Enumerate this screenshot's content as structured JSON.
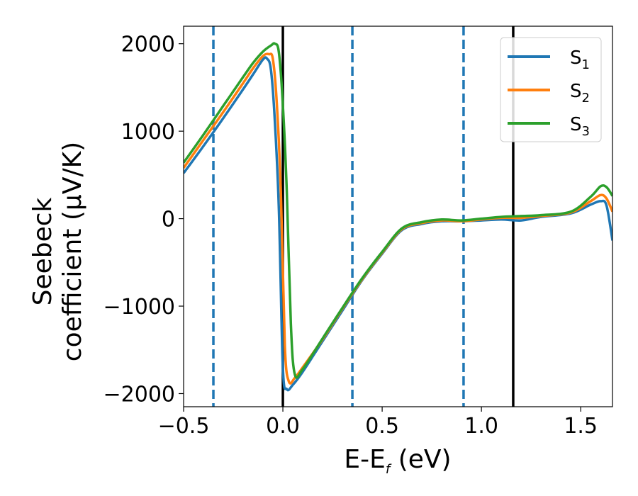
{
  "chart_data": {
    "type": "line",
    "xlabel": "E-E",
    "xlabel_sub": "f",
    "xlabel_unit": " (eV)",
    "ylabel_line1": "Seebeck",
    "ylabel_line2": "coefficient  (μV/K)",
    "xlim": [
      -0.5,
      1.66
    ],
    "ylim": [
      -2150,
      2200
    ],
    "xticks": [
      -0.5,
      0.0,
      0.5,
      1.0,
      1.5
    ],
    "xtick_labels": [
      "−0.5",
      "0.0",
      "0.5",
      "1.0",
      "1.5"
    ],
    "yticks": [
      -2000,
      -1000,
      0,
      1000,
      2000
    ],
    "ytick_labels": [
      "−2000",
      "−1000",
      "0",
      "1000",
      "2000"
    ],
    "legend_position": "top-right",
    "vlines": [
      {
        "x": -0.35,
        "style": "dashed",
        "color": "#1f77b4"
      },
      {
        "x": 0.0,
        "style": "solid",
        "color": "#000000"
      },
      {
        "x": 0.35,
        "style": "dashed",
        "color": "#1f77b4"
      },
      {
        "x": 0.91,
        "style": "dashed",
        "color": "#1f77b4"
      },
      {
        "x": 1.16,
        "style": "solid",
        "color": "#000000"
      }
    ],
    "series": [
      {
        "name": "S",
        "sub": "1",
        "color": "#1f77b4",
        "points": [
          [
            -0.5,
            520
          ],
          [
            -0.4,
            830
          ],
          [
            -0.3,
            1150
          ],
          [
            -0.2,
            1480
          ],
          [
            -0.15,
            1650
          ],
          [
            -0.1,
            1820
          ],
          [
            -0.08,
            1830
          ],
          [
            -0.06,
            1700
          ],
          [
            -0.04,
            1100
          ],
          [
            -0.02,
            100
          ],
          [
            0.0,
            -1700
          ],
          [
            0.02,
            -1950
          ],
          [
            0.05,
            -1900
          ],
          [
            0.1,
            -1750
          ],
          [
            0.2,
            -1400
          ],
          [
            0.3,
            -1050
          ],
          [
            0.4,
            -700
          ],
          [
            0.5,
            -400
          ],
          [
            0.6,
            -130
          ],
          [
            0.7,
            -60
          ],
          [
            0.8,
            -30
          ],
          [
            0.9,
            -30
          ],
          [
            1.0,
            -20
          ],
          [
            1.1,
            -10
          ],
          [
            1.2,
            -20
          ],
          [
            1.3,
            20
          ],
          [
            1.45,
            60
          ],
          [
            1.55,
            160
          ],
          [
            1.6,
            200
          ],
          [
            1.63,
            150
          ],
          [
            1.66,
            -250
          ]
        ]
      },
      {
        "name": "S",
        "sub": "2",
        "color": "#ff7f0e",
        "points": [
          [
            -0.5,
            580
          ],
          [
            -0.4,
            900
          ],
          [
            -0.3,
            1220
          ],
          [
            -0.2,
            1550
          ],
          [
            -0.15,
            1720
          ],
          [
            -0.1,
            1860
          ],
          [
            -0.07,
            1880
          ],
          [
            -0.05,
            1820
          ],
          [
            -0.03,
            1300
          ],
          [
            -0.01,
            300
          ],
          [
            0.01,
            -1450
          ],
          [
            0.03,
            -1860
          ],
          [
            0.06,
            -1820
          ],
          [
            0.1,
            -1700
          ],
          [
            0.2,
            -1380
          ],
          [
            0.3,
            -1030
          ],
          [
            0.4,
            -690
          ],
          [
            0.5,
            -390
          ],
          [
            0.6,
            -120
          ],
          [
            0.7,
            -50
          ],
          [
            0.8,
            -20
          ],
          [
            0.9,
            -30
          ],
          [
            1.0,
            -10
          ],
          [
            1.1,
            10
          ],
          [
            1.2,
            10
          ],
          [
            1.3,
            30
          ],
          [
            1.45,
            70
          ],
          [
            1.55,
            200
          ],
          [
            1.6,
            270
          ],
          [
            1.63,
            230
          ],
          [
            1.66,
            80
          ]
        ]
      },
      {
        "name": "S",
        "sub": "3",
        "color": "#2ca02c",
        "points": [
          [
            -0.5,
            640
          ],
          [
            -0.4,
            960
          ],
          [
            -0.3,
            1290
          ],
          [
            -0.2,
            1620
          ],
          [
            -0.15,
            1780
          ],
          [
            -0.1,
            1910
          ],
          [
            -0.06,
            1980
          ],
          [
            -0.04,
            2000
          ],
          [
            -0.02,
            1900
          ],
          [
            0.0,
            1300
          ],
          [
            0.02,
            300
          ],
          [
            0.04,
            -1200
          ],
          [
            0.06,
            -1780
          ],
          [
            0.1,
            -1720
          ],
          [
            0.2,
            -1370
          ],
          [
            0.3,
            -1020
          ],
          [
            0.4,
            -680
          ],
          [
            0.5,
            -380
          ],
          [
            0.6,
            -110
          ],
          [
            0.7,
            -40
          ],
          [
            0.8,
            -10
          ],
          [
            0.9,
            -20
          ],
          [
            1.0,
            0
          ],
          [
            1.1,
            20
          ],
          [
            1.2,
            30
          ],
          [
            1.3,
            40
          ],
          [
            1.45,
            80
          ],
          [
            1.55,
            250
          ],
          [
            1.6,
            370
          ],
          [
            1.63,
            360
          ],
          [
            1.66,
            260
          ]
        ]
      }
    ]
  }
}
